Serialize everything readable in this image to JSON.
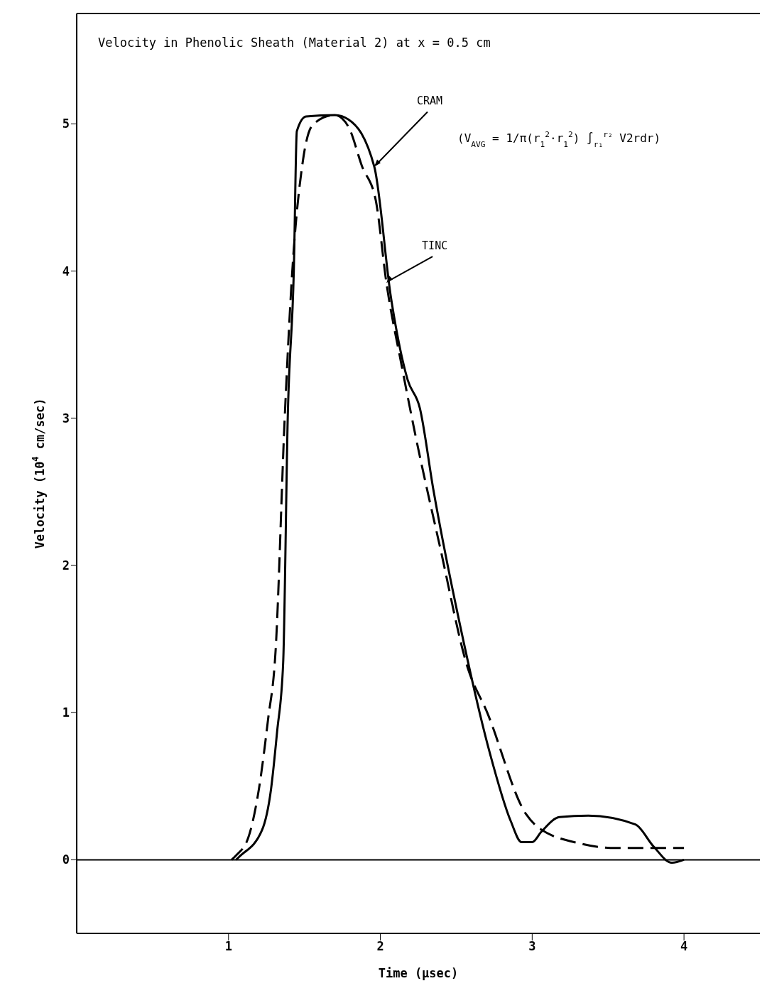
{
  "chart_data": {
    "type": "line",
    "title": "Velocity in Phenolic Sheath (Material 2) at x = 0.5 cm",
    "xlabel": "Time (μsec)",
    "ylabel": "Velocity (10$^{4}$ cm/sec)",
    "xlim": [
      0,
      4.5
    ],
    "xticks": [
      1,
      2,
      3,
      4
    ],
    "ylim": [
      -0.5,
      5.75
    ],
    "yticks": [
      0,
      1,
      2,
      3,
      4,
      5
    ],
    "grid": false,
    "marker": "none",
    "ref_lines": [
      {
        "axis": "y",
        "value": 0,
        "color": "#000000"
      }
    ],
    "annotations": [
      {
        "text": "CRAM",
        "x": 1.96,
        "y": 4.71
      },
      {
        "text": "TINC",
        "x": 2.04,
        "y": 3.92
      },
      "(V$_{AVG}$ = 1/π(r$_{1}$$^{2}$·r$_{1}$$^{2}$) ∫$_{r₁}$$^{r₂}$ V2rdr)"
    ],
    "series": [
      {
        "color": "#000000",
        "line_style": "solid",
        "x": [
          1.05,
          1.07,
          1.22,
          1.28,
          1.32,
          1.36,
          1.39,
          1.43,
          1.45,
          1.51,
          1.7,
          1.79,
          1.96,
          2.07,
          2.18,
          2.26,
          2.35,
          2.53,
          2.72,
          2.86,
          2.93,
          3.0,
          3.06,
          3.18,
          3.37,
          3.68,
          3.8,
          3.92,
          4.0
        ],
        "values": [
          0,
          0.02,
          0.2,
          0.48,
          0.87,
          1.34,
          3.0,
          4.0,
          4.95,
          5.05,
          5.06,
          5.03,
          4.71,
          3.82,
          3.26,
          3.07,
          2.51,
          1.57,
          0.73,
          0.26,
          0.12,
          0.12,
          0.19,
          0.29,
          0.3,
          0.24,
          0.09,
          -0.02,
          0
        ]
      },
      {
        "color": "#000000",
        "line_style": "dashed",
        "x": [
          1.02,
          1.05,
          1.13,
          1.2,
          1.26,
          1.31,
          1.37,
          1.42,
          1.49,
          1.56,
          1.7,
          1.79,
          1.88,
          1.97,
          2.04,
          2.14,
          2.23,
          2.39,
          2.58,
          2.7,
          2.96,
          3.04,
          3.32,
          3.55,
          4.0
        ],
        "values": [
          0,
          0.03,
          0.15,
          0.48,
          0.95,
          1.42,
          3.0,
          4.0,
          4.75,
          5.0,
          5.06,
          4.98,
          4.71,
          4.48,
          3.92,
          3.36,
          2.89,
          2.14,
          1.29,
          1.01,
          0.31,
          0.22,
          0.11,
          0.08,
          0.08
        ]
      }
    ]
  }
}
